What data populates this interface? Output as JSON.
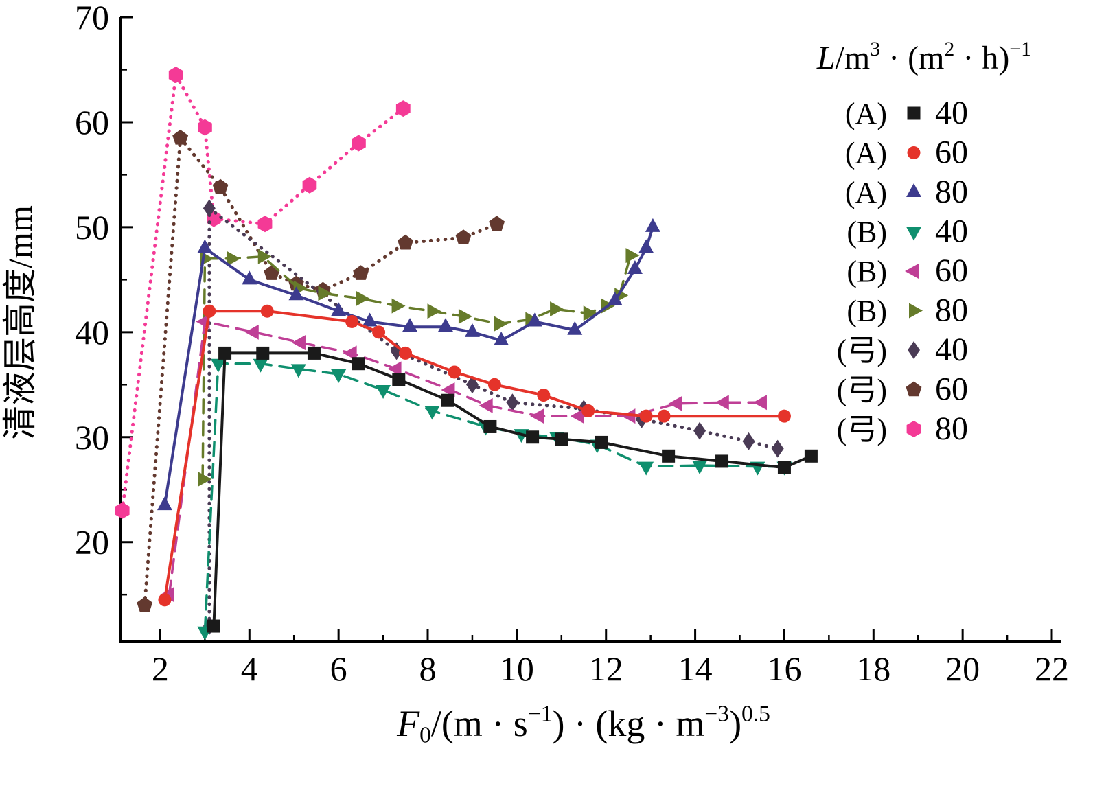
{
  "figure": {
    "background": "#ffffff",
    "axis_color": "#000000"
  },
  "chart_data": {
    "type": "scatter-line",
    "title": "",
    "ylabel": "清液层高度/mm",
    "xlabel_parts": [
      {
        "t": "F",
        "style": "italic"
      },
      {
        "t": "0",
        "pos": "sub"
      },
      {
        "t": "/(m · s"
      },
      {
        "t": "−1",
        "pos": "sup"
      },
      {
        "t": ") · (kg · m"
      },
      {
        "t": "−3",
        "pos": "sup"
      },
      {
        "t": ")"
      },
      {
        "t": "0.5",
        "pos": "sup"
      }
    ],
    "legend_title_parts": [
      {
        "t": "L",
        "style": "italic"
      },
      {
        "t": "/m"
      },
      {
        "t": "3",
        "pos": "sup"
      },
      {
        "t": " · (m"
      },
      {
        "t": "2",
        "pos": "sup"
      },
      {
        "t": " · h)"
      },
      {
        "t": "−1",
        "pos": "sup"
      }
    ],
    "x_axis": {
      "min": 1.1,
      "max": 22.2,
      "major_ticks": [
        2,
        4,
        6,
        8,
        10,
        12,
        14,
        16,
        18,
        20,
        22
      ],
      "minor_ticks": [
        3,
        5,
        7,
        9,
        11,
        13,
        15,
        17,
        19,
        21
      ]
    },
    "y_axis": {
      "min": 10.5,
      "max": 70,
      "major_ticks": [
        20,
        30,
        40,
        50,
        60,
        70
      ],
      "minor_ticks": [
        15,
        25,
        35,
        45,
        55,
        65
      ]
    },
    "series": [
      {
        "group": "(A)",
        "label": "40",
        "marker": "square",
        "color": "#1a1a1a",
        "line": "solid",
        "points": [
          [
            3.2,
            12
          ],
          [
            3.45,
            38
          ],
          [
            4.3,
            38
          ],
          [
            5.45,
            38
          ],
          [
            6.45,
            37
          ],
          [
            7.35,
            35.5
          ],
          [
            8.45,
            33.5
          ],
          [
            9.4,
            31
          ],
          [
            10.35,
            30
          ],
          [
            11.0,
            29.8
          ],
          [
            11.9,
            29.5
          ],
          [
            13.4,
            28.2
          ],
          [
            14.6,
            27.7
          ],
          [
            16.0,
            27.1
          ],
          [
            16.6,
            28.2
          ]
        ]
      },
      {
        "group": "(A)",
        "label": "60",
        "marker": "circle",
        "color": "#e5332a",
        "line": "solid",
        "points": [
          [
            2.1,
            14.5
          ],
          [
            3.1,
            42
          ],
          [
            4.4,
            42
          ],
          [
            6.3,
            41
          ],
          [
            6.9,
            40
          ],
          [
            7.5,
            38
          ],
          [
            8.6,
            36.2
          ],
          [
            9.5,
            35
          ],
          [
            10.6,
            34
          ],
          [
            11.6,
            32.5
          ],
          [
            12.9,
            32
          ],
          [
            13.3,
            32
          ],
          [
            16.0,
            32
          ]
        ]
      },
      {
        "group": "(A)",
        "label": "80",
        "marker": "triangle-up",
        "color": "#3d3b8e",
        "line": "solid",
        "points": [
          [
            2.1,
            23.5
          ],
          [
            3.0,
            48
          ],
          [
            4.0,
            45
          ],
          [
            5.05,
            43.5
          ],
          [
            6.0,
            42
          ],
          [
            6.7,
            41
          ],
          [
            7.6,
            40.5
          ],
          [
            8.4,
            40.5
          ],
          [
            9.0,
            40
          ],
          [
            9.65,
            39.2
          ],
          [
            10.4,
            41
          ],
          [
            11.3,
            40.2
          ],
          [
            12.2,
            43
          ],
          [
            12.65,
            46
          ],
          [
            12.9,
            48
          ],
          [
            13.05,
            50
          ]
        ]
      },
      {
        "group": "(B)",
        "label": "40",
        "marker": "triangle-down",
        "color": "#0f8f6e",
        "line": "dashed",
        "points": [
          [
            3.0,
            11.5
          ],
          [
            3.3,
            37
          ],
          [
            4.25,
            37
          ],
          [
            5.1,
            36.5
          ],
          [
            6.0,
            36
          ],
          [
            7.0,
            34.5
          ],
          [
            8.1,
            32.5
          ],
          [
            9.3,
            31
          ],
          [
            10.1,
            30.3
          ],
          [
            10.9,
            30
          ],
          [
            11.8,
            29.3
          ],
          [
            12.9,
            27.2
          ],
          [
            14.1,
            27.3
          ],
          [
            15.4,
            27.2
          ],
          [
            16.0,
            27.2
          ]
        ]
      },
      {
        "group": "(B)",
        "label": "60",
        "marker": "triangle-left",
        "color": "#bf3f96",
        "line": "dashed",
        "points": [
          [
            2.2,
            15
          ],
          [
            3.0,
            41
          ],
          [
            4.1,
            40
          ],
          [
            5.15,
            39
          ],
          [
            6.3,
            38
          ],
          [
            7.3,
            36.5
          ],
          [
            8.5,
            34.5
          ],
          [
            9.35,
            33
          ],
          [
            10.5,
            32
          ],
          [
            11.4,
            32
          ],
          [
            12.55,
            32
          ],
          [
            13.6,
            33.2
          ],
          [
            14.65,
            33.3
          ],
          [
            15.5,
            33.3
          ]
        ]
      },
      {
        "group": "(B)",
        "label": "80",
        "marker": "triangle-right",
        "color": "#667b2a",
        "line": "dashed",
        "points": [
          [
            2.95,
            26
          ],
          [
            3.0,
            47
          ],
          [
            3.6,
            47
          ],
          [
            4.3,
            47.2
          ],
          [
            5.1,
            44.2
          ],
          [
            5.65,
            43.7
          ],
          [
            6.5,
            43.2
          ],
          [
            7.3,
            42.5
          ],
          [
            8.1,
            42
          ],
          [
            8.8,
            41.5
          ],
          [
            9.6,
            40.8
          ],
          [
            10.3,
            41.2
          ],
          [
            10.85,
            42.2
          ],
          [
            11.6,
            41.8
          ],
          [
            12.0,
            42.5
          ],
          [
            12.3,
            43.5
          ],
          [
            12.55,
            47.3
          ]
        ]
      },
      {
        "group": "(弓)",
        "label": "40",
        "marker": "diamond",
        "color": "#4a3b55",
        "line": "dotted",
        "points": [
          [
            3.1,
            12
          ],
          [
            3.1,
            51.8
          ],
          [
            7.3,
            38.2
          ],
          [
            9.0,
            35
          ],
          [
            9.9,
            33.3
          ],
          [
            11.5,
            32.7
          ],
          [
            12.8,
            31.7
          ],
          [
            14.1,
            30.6
          ],
          [
            15.2,
            29.6
          ],
          [
            15.85,
            28.9
          ]
        ]
      },
      {
        "group": "(弓)",
        "label": "60",
        "marker": "pentagon",
        "color": "#63392f",
        "line": "dotted",
        "points": [
          [
            1.65,
            14
          ],
          [
            2.45,
            58.5
          ],
          [
            3.35,
            53.8
          ],
          [
            4.5,
            45.6
          ],
          [
            5.05,
            44.6
          ],
          [
            5.65,
            44
          ],
          [
            6.5,
            45.6
          ],
          [
            7.5,
            48.5
          ],
          [
            8.8,
            49
          ],
          [
            9.55,
            50.3
          ]
        ]
      },
      {
        "group": "(弓)",
        "label": "80",
        "marker": "hexagon",
        "color": "#f43a96",
        "line": "dotted",
        "points": [
          [
            1.15,
            23
          ],
          [
            2.35,
            64.5
          ],
          [
            3.0,
            59.5
          ],
          [
            3.2,
            50.8
          ],
          [
            4.35,
            50.3
          ],
          [
            5.35,
            54
          ],
          [
            6.45,
            58
          ],
          [
            7.45,
            61.3
          ]
        ]
      }
    ],
    "legend_position": "top-right",
    "grid": false
  }
}
